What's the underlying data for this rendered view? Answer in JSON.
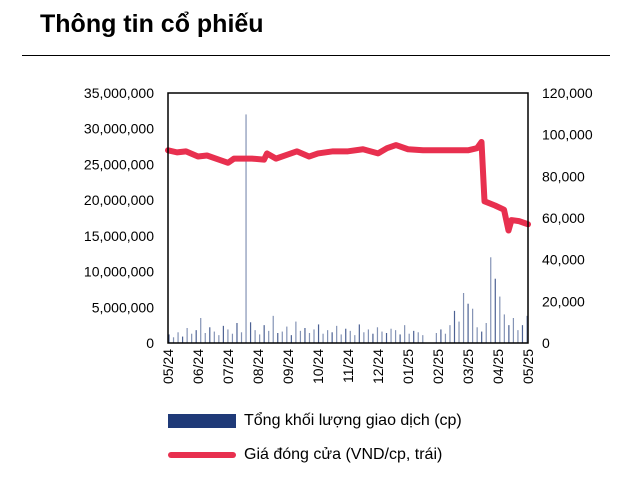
{
  "title": "Thông tin cổ phiếu",
  "chart_data": {
    "type": "bar+line",
    "x_labels": [
      "05/24",
      "06/24",
      "07/24",
      "08/24",
      "09/24",
      "10/24",
      "11/24",
      "12/24",
      "01/25",
      "02/25",
      "03/25",
      "04/25",
      "05/25"
    ],
    "left_axis": {
      "ticks": [
        "0",
        "5,000,000",
        "10,000,000",
        "15,000,000",
        "20,000,000",
        "25,000,000",
        "30,000,000",
        "35,000,000"
      ],
      "range": [
        0,
        35000000
      ]
    },
    "right_axis": {
      "ticks": [
        "0",
        "20,000",
        "40,000",
        "60,000",
        "80,000",
        "100,000",
        "120,000"
      ],
      "range": [
        0,
        120000
      ]
    },
    "series": [
      {
        "name": "Tổng khối lượng giao dịch (cp)",
        "type": "bar",
        "color": "#1f3a78",
        "values": [
          1.2,
          0.8,
          1.5,
          0.9,
          2.1,
          1.3,
          1.8,
          3.5,
          1.4,
          2.2,
          1.6,
          1.1,
          2.4,
          1.9,
          1.3,
          2.8,
          1.5,
          32,
          2.9,
          1.8,
          1.2,
          2.5,
          1.7,
          3.8,
          1.4,
          1.6,
          2.3,
          1.1,
          3.0,
          1.7,
          2.1,
          1.4,
          1.9,
          2.6,
          1.3,
          1.8,
          1.5,
          2.4,
          1.2,
          2.0,
          1.7,
          1.1,
          2.6,
          1.5,
          1.9,
          1.3,
          2.2,
          1.6,
          1.4,
          2.0,
          1.8,
          1.2,
          2.5,
          1.3,
          1.7,
          1.5,
          1.1,
          0,
          0,
          1.4,
          1.9,
          1.3,
          2.5,
          4.5,
          3.0,
          7.0,
          5.5,
          4.8,
          2.2,
          1.6,
          2.8,
          12.0,
          9.0,
          6.5,
          4.0,
          2.5,
          3.5,
          1.8,
          2.5,
          3.8
        ]
      },
      {
        "name": "Giá đóng cửa (VND/cp, trái)",
        "type": "line",
        "color": "#e8304f",
        "points": [
          [
            0,
            92500
          ],
          [
            0.3,
            91500
          ],
          [
            0.6,
            92000
          ],
          [
            1,
            89500
          ],
          [
            1.3,
            90000
          ],
          [
            1.7,
            88000
          ],
          [
            2,
            86500
          ],
          [
            2.2,
            88500
          ],
          [
            2.8,
            88500
          ],
          [
            3.2,
            88000
          ],
          [
            3.3,
            91000
          ],
          [
            3.6,
            88500
          ],
          [
            4,
            90500
          ],
          [
            4.3,
            92000
          ],
          [
            4.7,
            89500
          ],
          [
            5,
            91000
          ],
          [
            5.5,
            92000
          ],
          [
            6,
            92000
          ],
          [
            6.5,
            93000
          ],
          [
            7,
            91000
          ],
          [
            7.3,
            93500
          ],
          [
            7.6,
            95000
          ],
          [
            8,
            93000
          ],
          [
            8.5,
            92500
          ],
          [
            9,
            92500
          ],
          [
            9.5,
            92500
          ],
          [
            10,
            92500
          ],
          [
            10.3,
            93500
          ],
          [
            10.45,
            96500
          ],
          [
            10.55,
            68000
          ],
          [
            10.9,
            66000
          ],
          [
            11.2,
            64000
          ],
          [
            11.35,
            54000
          ],
          [
            11.45,
            59000
          ],
          [
            11.7,
            58500
          ],
          [
            12,
            57000
          ]
        ]
      }
    ],
    "volume_unit": "million shares"
  }
}
